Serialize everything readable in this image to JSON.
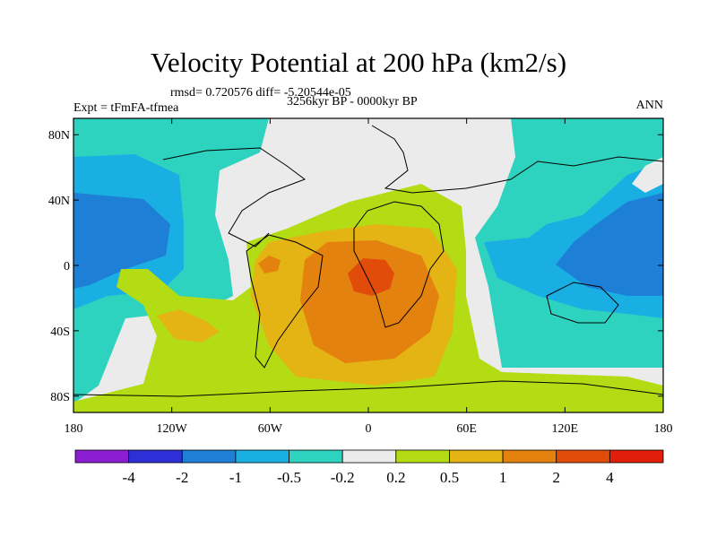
{
  "title": "Velocity Potential at 200 hPa (km2/s)",
  "stats": "rmsd= 0.720576 diff= -5.20544e-05",
  "experiment": "Expt = tFmFA-tfmea",
  "period": "3256kyr BP - 0000kyr BP",
  "season": "ANN",
  "map": {
    "lon_ticks": [
      {
        "lon": -180,
        "label": "180"
      },
      {
        "lon": -120,
        "label": "120W"
      },
      {
        "lon": -60,
        "label": "60W"
      },
      {
        "lon": 0,
        "label": "0"
      },
      {
        "lon": 60,
        "label": "60E"
      },
      {
        "lon": 120,
        "label": "120E"
      },
      {
        "lon": 180,
        "label": "180"
      }
    ],
    "lat_ticks": [
      {
        "lat": 80,
        "label": "80N"
      },
      {
        "lat": 40,
        "label": "40N"
      },
      {
        "lat": 0,
        "label": "0"
      },
      {
        "lat": -40,
        "label": "40S"
      },
      {
        "lat": -80,
        "label": "80S"
      }
    ],
    "lon_range": [
      -180,
      180
    ],
    "lat_range": [
      -90,
      90
    ]
  },
  "colorbar": {
    "colors": [
      "#8c1ed2",
      "#2f2fd7",
      "#1e7fd6",
      "#1aafe3",
      "#2ed3c0",
      "#ebebeb",
      "#b4dc14",
      "#e3b414",
      "#e4820f",
      "#e14c0a",
      "#e01e0a"
    ],
    "labels": [
      "-4",
      "-2",
      "-1",
      "-0.5",
      "-0.2",
      "0.2",
      "0.5",
      "1",
      "2",
      "4"
    ]
  }
}
